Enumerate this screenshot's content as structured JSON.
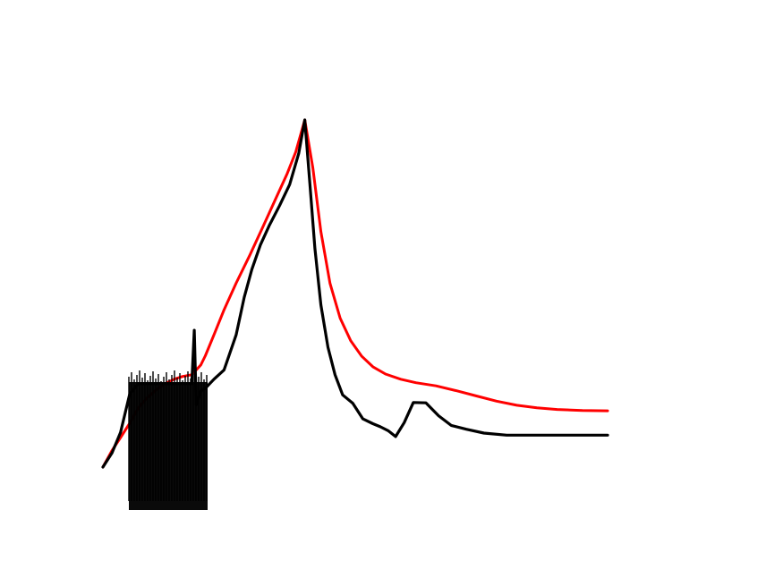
{
  "chart_data": {
    "type": "line",
    "title": "",
    "xlabel": "",
    "ylabel": "",
    "grid": false,
    "axes_visible": false,
    "xlim": [
      0,
      100
    ],
    "ylim": [
      0,
      100
    ],
    "series": [
      {
        "color": "#ff0000",
        "points": [
          [
            0.0,
            0.0
          ],
          [
            1.8,
            4.8
          ],
          [
            3.5,
            8.5
          ],
          [
            5.3,
            12.6
          ],
          [
            7.0,
            17.0
          ],
          [
            8.8,
            20.0
          ],
          [
            10.6,
            22.3
          ],
          [
            12.3,
            24.0
          ],
          [
            14.1,
            25.3
          ],
          [
            15.8,
            26.1
          ],
          [
            17.6,
            26.6
          ],
          [
            19.4,
            29.4
          ],
          [
            20.3,
            32.1
          ],
          [
            22.0,
            38.1
          ],
          [
            24.0,
            45.3
          ],
          [
            26.4,
            53.0
          ],
          [
            29.1,
            61.0
          ],
          [
            31.7,
            69.2
          ],
          [
            34.4,
            77.8
          ],
          [
            36.5,
            84.5
          ],
          [
            38.2,
            90.7
          ],
          [
            40.0,
            100.0
          ],
          [
            41.6,
            86.2
          ],
          [
            43.2,
            67.8
          ],
          [
            45.0,
            52.9
          ],
          [
            47.0,
            42.9
          ],
          [
            49.1,
            36.4
          ],
          [
            51.3,
            31.9
          ],
          [
            53.5,
            28.9
          ],
          [
            56.0,
            26.8
          ],
          [
            59.0,
            25.3
          ],
          [
            62.0,
            24.3
          ],
          [
            66.0,
            23.4
          ],
          [
            70.0,
            22.0
          ],
          [
            74.0,
            20.5
          ],
          [
            78.0,
            19.0
          ],
          [
            82.0,
            17.8
          ],
          [
            86.0,
            17.1
          ],
          [
            90.0,
            16.6
          ],
          [
            95.0,
            16.3
          ],
          [
            100.0,
            16.2
          ]
        ]
      },
      {
        "color": "#000000",
        "points": [
          [
            0.0,
            0.0
          ],
          [
            1.8,
            4.1
          ],
          [
            3.5,
            10.0
          ],
          [
            5.3,
            21.0
          ],
          [
            7.0,
            24.0
          ],
          [
            8.8,
            24.0
          ],
          [
            10.6,
            24.0
          ],
          [
            12.3,
            24.0
          ],
          [
            14.1,
            24.0
          ],
          [
            15.9,
            24.0
          ],
          [
            17.6,
            24.0
          ],
          [
            18.1,
            39.4
          ],
          [
            18.5,
            17.9
          ],
          [
            19.4,
            21.9
          ],
          [
            20.3,
            22.7
          ],
          [
            22.0,
            25.3
          ],
          [
            24.0,
            28.0
          ],
          [
            26.4,
            38.1
          ],
          [
            28.0,
            48.9
          ],
          [
            29.5,
            56.9
          ],
          [
            31.2,
            64.0
          ],
          [
            33.0,
            69.7
          ],
          [
            35.0,
            75.3
          ],
          [
            37.0,
            81.4
          ],
          [
            38.8,
            90.3
          ],
          [
            40.0,
            100.0
          ],
          [
            41.0,
            81.9
          ],
          [
            42.0,
            63.0
          ],
          [
            43.2,
            46.7
          ],
          [
            44.6,
            34.5
          ],
          [
            46.0,
            26.6
          ],
          [
            47.5,
            20.8
          ],
          [
            49.5,
            18.4
          ],
          [
            51.5,
            13.9
          ],
          [
            53.5,
            12.5
          ],
          [
            55.0,
            11.6
          ],
          [
            56.5,
            10.5
          ],
          [
            58.0,
            8.8
          ],
          [
            59.7,
            12.8
          ],
          [
            61.5,
            18.6
          ],
          [
            64.0,
            18.5
          ],
          [
            66.5,
            14.8
          ],
          [
            69.0,
            12.0
          ],
          [
            72.0,
            10.9
          ],
          [
            75.5,
            9.8
          ],
          [
            80.0,
            9.2
          ],
          [
            85.0,
            9.2
          ],
          [
            90.0,
            9.2
          ],
          [
            95.0,
            9.2
          ],
          [
            100.0,
            9.2
          ]
        ]
      }
    ]
  }
}
